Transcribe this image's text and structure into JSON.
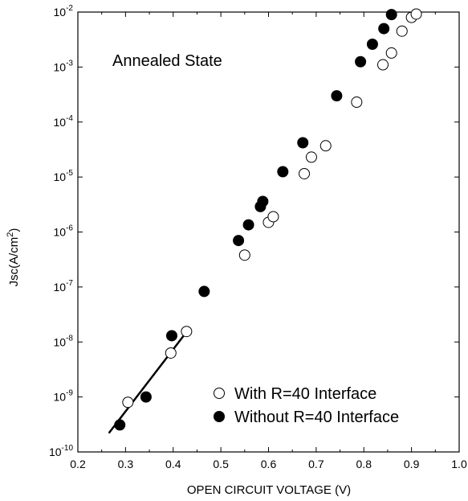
{
  "chart_data": {
    "type": "scatter",
    "title": "",
    "xlabel": "OPEN CIRCUIT VOLTAGE (V)",
    "ylabel_main": "Jsc(A/cm",
    "ylabel_sup": "2",
    "ylabel_close": ")",
    "y_scale": "log",
    "xlim": [
      0.2,
      1.0
    ],
    "ylim": [
      1e-10,
      0.01
    ],
    "x_ticks": [
      {
        "value": 0.2,
        "label": "0.2"
      },
      {
        "value": 0.3,
        "label": "0.3"
      },
      {
        "value": 0.4,
        "label": "0.4"
      },
      {
        "value": 0.5,
        "label": "0.5"
      },
      {
        "value": 0.6,
        "label": "0.6"
      },
      {
        "value": 0.7,
        "label": "0.7"
      },
      {
        "value": 0.8,
        "label": "0.8"
      },
      {
        "value": 0.9,
        "label": "0.9"
      },
      {
        "value": 1.0,
        "label": "1.0"
      }
    ],
    "y_ticks": [
      {
        "exp": -10,
        "base": "10",
        "sup": "-10"
      },
      {
        "exp": -9,
        "base": "10",
        "sup": "-9"
      },
      {
        "exp": -8,
        "base": "10",
        "sup": "-8"
      },
      {
        "exp": -7,
        "base": "10",
        "sup": "-7"
      },
      {
        "exp": -6,
        "base": "10",
        "sup": "-6"
      },
      {
        "exp": -5,
        "base": "10",
        "sup": "-5"
      },
      {
        "exp": -4,
        "base": "10",
        "sup": "-4"
      },
      {
        "exp": -3,
        "base": "10",
        "sup": "-3"
      },
      {
        "exp": -2,
        "base": "10",
        "sup": "-2"
      }
    ],
    "grid": false,
    "legend_placement": "bottom-right",
    "annotation": "Annealed State",
    "series": [
      {
        "name": "With R=40 Interface",
        "marker": "open-circle",
        "points": [
          {
            "x": 0.305,
            "y": 8e-10
          },
          {
            "x": 0.395,
            "y": 6.3e-09
          },
          {
            "x": 0.428,
            "y": 1.55e-08
          },
          {
            "x": 0.55,
            "y": 3.8e-07
          },
          {
            "x": 0.6,
            "y": 1.5e-06
          },
          {
            "x": 0.61,
            "y": 1.9e-06
          },
          {
            "x": 0.675,
            "y": 1.15e-05
          },
          {
            "x": 0.69,
            "y": 2.3e-05
          },
          {
            "x": 0.72,
            "y": 3.7e-05
          },
          {
            "x": 0.785,
            "y": 0.00023
          },
          {
            "x": 0.84,
            "y": 0.0011
          },
          {
            "x": 0.858,
            "y": 0.0018
          },
          {
            "x": 0.88,
            "y": 0.0045
          },
          {
            "x": 0.9,
            "y": 0.008
          },
          {
            "x": 0.91,
            "y": 0.0092
          }
        ]
      },
      {
        "name": "Without R=40 Interface",
        "marker": "filled-circle",
        "points": [
          {
            "x": 0.288,
            "y": 3.1e-10
          },
          {
            "x": 0.343,
            "y": 1e-09
          },
          {
            "x": 0.397,
            "y": 1.3e-08
          },
          {
            "x": 0.465,
            "y": 8.3e-08
          },
          {
            "x": 0.537,
            "y": 7e-07
          },
          {
            "x": 0.558,
            "y": 1.35e-06
          },
          {
            "x": 0.583,
            "y": 2.9e-06
          },
          {
            "x": 0.588,
            "y": 3.6e-06
          },
          {
            "x": 0.63,
            "y": 1.25e-05
          },
          {
            "x": 0.672,
            "y": 4.2e-05
          },
          {
            "x": 0.743,
            "y": 0.0003
          },
          {
            "x": 0.793,
            "y": 0.00125
          },
          {
            "x": 0.818,
            "y": 0.0026
          },
          {
            "x": 0.842,
            "y": 0.005
          },
          {
            "x": 0.858,
            "y": 0.009
          }
        ]
      }
    ],
    "fit_line": {
      "x": [
        0.265,
        0.43
      ],
      "y": [
        2.2e-10,
        1.6e-08
      ]
    }
  }
}
